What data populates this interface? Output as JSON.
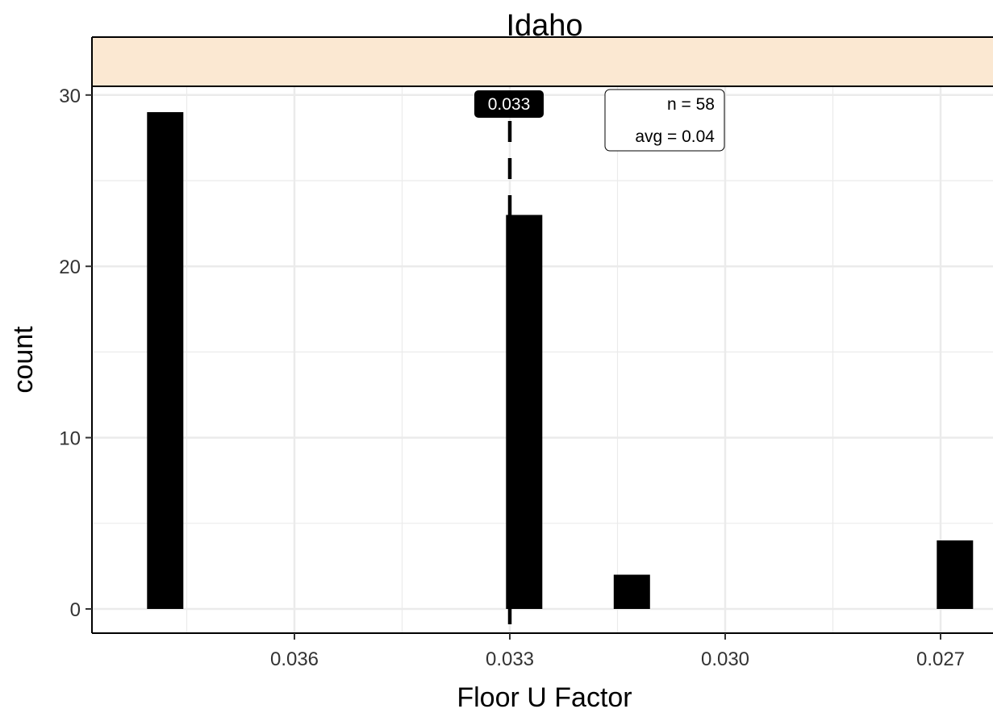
{
  "chart_data": {
    "type": "bar",
    "title": "Idaho",
    "xlabel": "Floor U Factor",
    "ylabel": "count",
    "x_reversed": true,
    "xlim": [
      0.0388,
      0.0261
    ],
    "ylim": [
      0,
      30.7
    ],
    "x_ticks": [
      0.036,
      0.033,
      0.03,
      0.027
    ],
    "x_tick_labels": [
      "0.036",
      "0.033",
      "0.030",
      "0.027"
    ],
    "y_ticks": [
      0,
      10,
      20,
      30
    ],
    "y_tick_labels": [
      "0",
      "10",
      "20",
      "30"
    ],
    "bars": [
      {
        "x": 0.0378,
        "count": 29
      },
      {
        "x": 0.0328,
        "count": 23
      },
      {
        "x": 0.0313,
        "count": 2
      },
      {
        "x": 0.0268,
        "count": 4
      }
    ],
    "reference_line": {
      "value": 0.033,
      "label": "0.033",
      "style": "dashed"
    },
    "annotation": {
      "n_label": "n = 58",
      "avg_label": "avg = 0.04"
    },
    "grid": true,
    "facet_strip_color": "#fbe8d2",
    "bar_color": "#000000"
  }
}
